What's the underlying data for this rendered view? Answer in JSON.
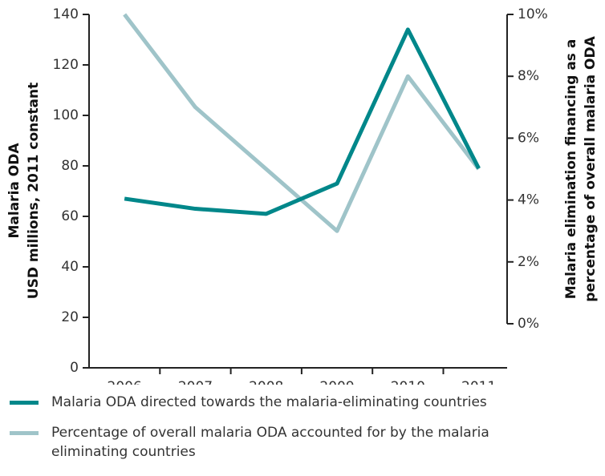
{
  "chart_data": {
    "type": "line",
    "categories": [
      "2006",
      "2007",
      "2008",
      "2009",
      "2010",
      "2011"
    ],
    "series": [
      {
        "name": "Malaria ODA directed towards the malaria-eliminating countries",
        "color": "#00878a",
        "values": [
          67,
          63,
          61,
          73,
          134,
          79
        ]
      },
      {
        "name": "Percentage of overall malaria ODA accounted for by the malaria eliminating countries",
        "color": "#9fc4c9",
        "axis": "y2",
        "values": [
          10,
          7,
          5,
          3,
          8,
          5
        ]
      }
    ],
    "ylabel": [
      "Malaria ODA",
      "USD millions, 2011 constant"
    ],
    "y2label": [
      "Malaria elimination financing as a",
      "percentage of overall malaria ODA"
    ],
    "ylim": [
      0,
      140
    ],
    "yticks": [
      0,
      20,
      40,
      60,
      80,
      100,
      120,
      140
    ],
    "y2lim": [
      0,
      10
    ],
    "y2ticks": [
      {
        "value": 0,
        "label": "0%"
      },
      {
        "value": 2,
        "label": "2%"
      },
      {
        "value": 4,
        "label": "4%"
      },
      {
        "value": 6,
        "label": "6%"
      },
      {
        "value": 8,
        "label": "8%"
      },
      {
        "value": 10,
        "label": "10%"
      }
    ],
    "legend": "bottom"
  }
}
